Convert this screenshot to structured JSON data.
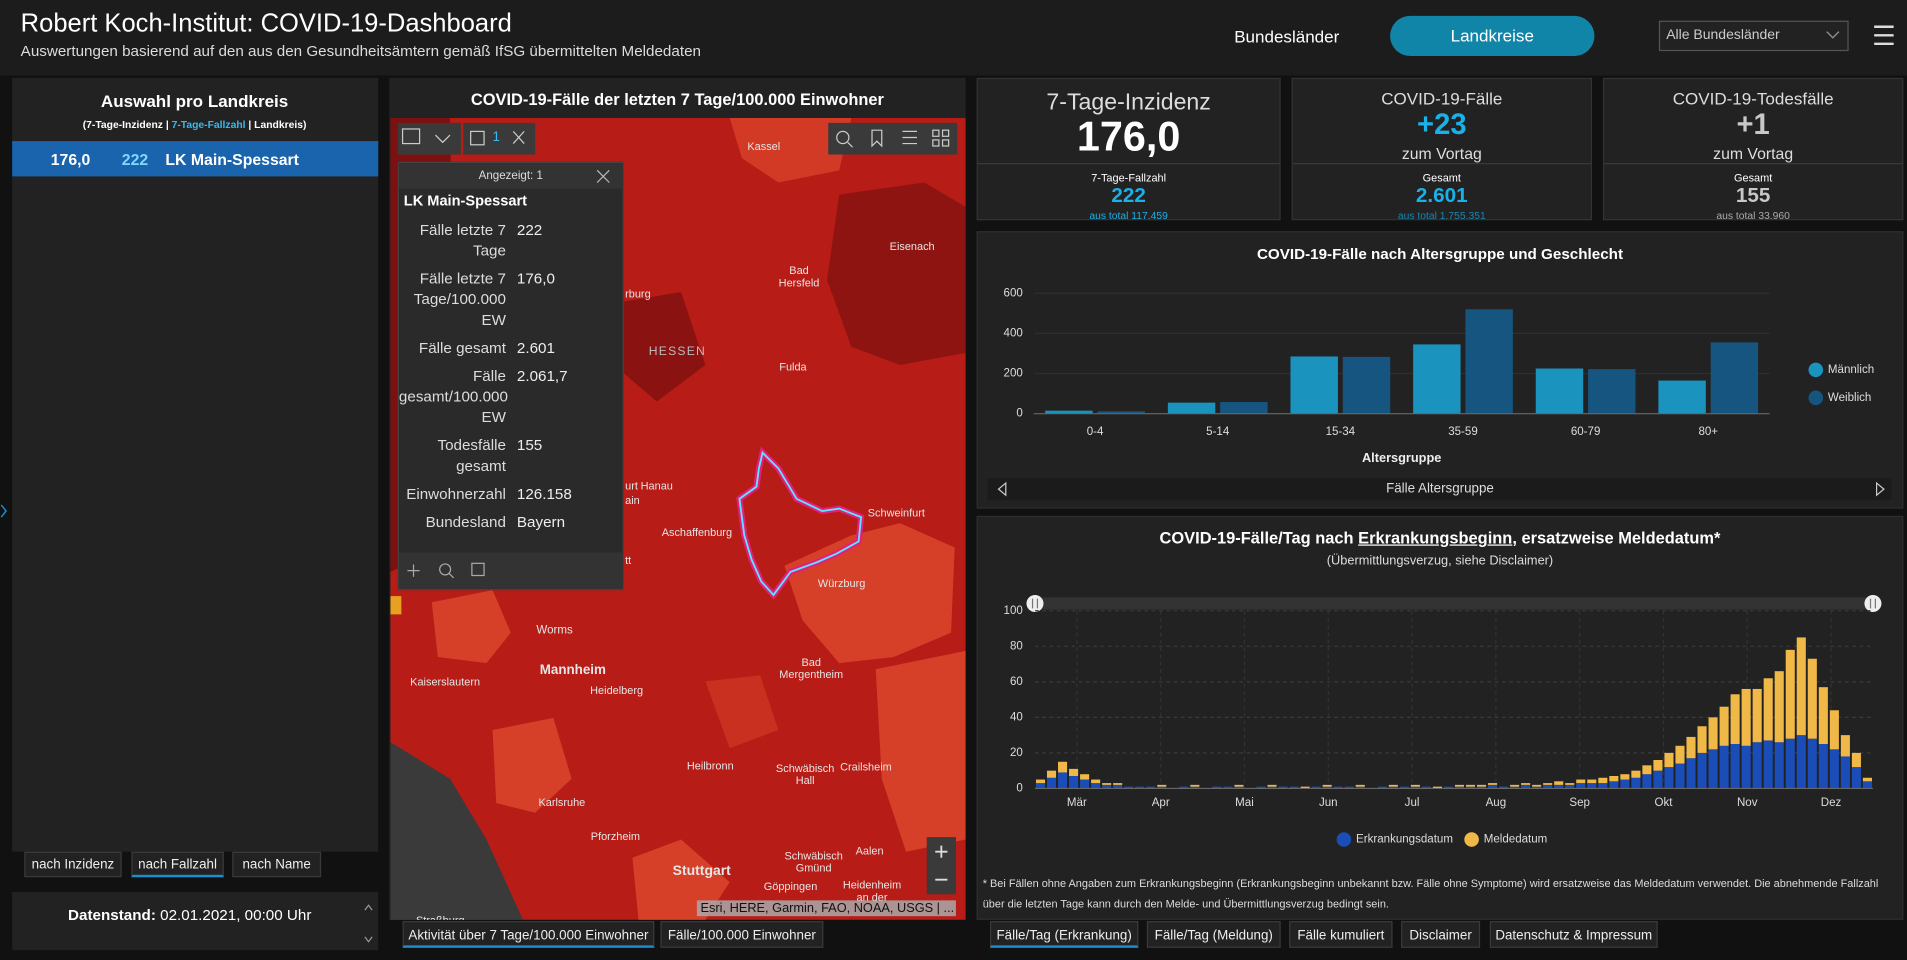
{
  "header": {
    "title": "Robert Koch-Institut: COVID-19-Dashboard",
    "subtitle": "Auswertungen basierend auf den aus den Gesundheitsämtern gemäß IfSG übermittelten Meldedaten",
    "nav": [
      "Bundesländer",
      "Landkreise"
    ],
    "dropdown": "Alle Bundesländer"
  },
  "list_panel": {
    "title": "Auswahl pro Landkreis",
    "subtitle": [
      "(7-Tage-Inzidenz | ",
      "7-Tage-Fallzahl",
      " | Landkreis)"
    ],
    "rows": [
      [
        "176,0",
        "222",
        "LK Main-Spessart"
      ]
    ],
    "sort_buttons": [
      "nach Inzidenz",
      "nach Fallzahl",
      "nach Name"
    ],
    "date_label": "Datenstand:",
    "date": "02.01.2021, 00:00 Uhr"
  },
  "map_panel": {
    "title": "COVID-19-Fälle der letzten 7 Tage/100.000 Einwohner",
    "selection_count": "1",
    "popup": {
      "header": "Angezeigt: 1",
      "title": "LK Main-Spessart",
      "fields": [
        [
          "Fälle letzte 7 Tage",
          "222"
        ],
        [
          "Fälle letzte 7 Tage/100.000 EW",
          "176,0"
        ],
        [
          "Fälle gesamt",
          "2.601"
        ],
        [
          "Fälle gesamt/100.000 EW",
          "2.061,7"
        ],
        [
          "Todesfälle gesamt",
          "155"
        ],
        [
          "Einwohnerzahl",
          "126.158"
        ],
        [
          "Bundesland",
          "Bayern"
        ]
      ]
    },
    "place_labels": [
      [
        "Kassel"
      ],
      [
        "Eisenach"
      ],
      [
        "Bad",
        "Hersfeld"
      ],
      [
        "HESSEN"
      ],
      [
        "Fulda"
      ],
      [
        "rburg"
      ],
      [
        "urt"
      ],
      [
        "Hanau"
      ],
      [
        "ain"
      ],
      [
        "tt"
      ],
      [
        "Aschaffenburg"
      ],
      [
        "Schweinfurt"
      ],
      [
        "Würzburg"
      ],
      [
        "Worms"
      ],
      [
        "Mannheim"
      ],
      [
        "Bad",
        "Mergentheim"
      ],
      [
        "Kaiserslautern"
      ],
      [
        "Heidelberg"
      ],
      [
        "Heilbronn"
      ],
      [
        "Schwäbisch",
        "Hall"
      ],
      [
        "Crailsheim"
      ],
      [
        "Karlsruhe"
      ],
      [
        "Pforzheim"
      ],
      [
        "Aalen"
      ],
      [
        "Stuttgart"
      ],
      [
        "Schwäbisch",
        "Gmünd"
      ],
      [
        "Göppingen"
      ],
      [
        "Heidenheim",
        "an der"
      ],
      [
        "Straßburg"
      ]
    ],
    "attribution": "Esri, HERE, Garmin, FAO, NOAA, USGS | ...",
    "tabs": [
      "Aktivität über 7 Tage/100.000 Einwohner",
      "Fälle/100.000 Einwohner"
    ]
  },
  "kpis": [
    {
      "title": "7-Tage-Inzidenz",
      "value": "176,0",
      "sub_label": "7-Tage-Fallzahl",
      "sub_value": "222",
      "sub_total": "aus total 117.459"
    },
    {
      "title": "COVID-19-Fälle",
      "value": "+23",
      "value_note": "zum Vortag",
      "sub_label": "Gesamt",
      "sub_value": "2.601",
      "sub_total": "aus total 1.755.351"
    },
    {
      "title": "COVID-19-Todesfälle",
      "value": "+1",
      "value_note": "zum Vortag",
      "sub_label": "Gesamt",
      "sub_value": "155",
      "sub_total": "aus total 33.960"
    }
  ],
  "age_chart": {
    "type": "bar",
    "title": "COVID-19-Fälle nach Altersgruppe und Geschlecht",
    "x_label": "Altersgruppe",
    "nav_label": "Fälle Altersgruppe",
    "categories": [
      "0-4",
      "5-14",
      "15-34",
      "35-59",
      "60-79",
      "80+"
    ],
    "series": [
      {
        "name": "Männlich",
        "color": "#1a93bf",
        "values": [
          15,
          55,
          285,
          345,
          225,
          165
        ]
      },
      {
        "name": "Weiblich",
        "color": "#15557f",
        "values": [
          12,
          58,
          283,
          520,
          222,
          355
        ]
      }
    ],
    "ylim": [
      0,
      600
    ],
    "yticks": [
      0,
      200,
      400,
      600
    ],
    "grid": true
  },
  "daily_chart": {
    "type": "stacked_bar",
    "title": [
      "COVID-19-Fälle/Tag nach ",
      "Erkrankungsbeginn",
      ", ersatzweise Meldedatum*"
    ],
    "subtitle": "(Übermittlungsverzug, siehe Disclaimer)",
    "xlim": [
      0,
      76
    ],
    "xticks": [
      {
        "value": 3.8,
        "label": "Mär"
      },
      {
        "value": 11.4,
        "label": "Apr"
      },
      {
        "value": 19,
        "label": "Mai"
      },
      {
        "value": 26.6,
        "label": "Jun"
      },
      {
        "value": 34.2,
        "label": "Jul"
      },
      {
        "value": 41.8,
        "label": "Aug"
      },
      {
        "value": 49.4,
        "label": "Sep"
      },
      {
        "value": 57,
        "label": "Okt"
      },
      {
        "value": 64.6,
        "label": "Nov"
      },
      {
        "value": 72.2,
        "label": "Dez"
      }
    ],
    "ylim": [
      0,
      100
    ],
    "yticks": [
      0,
      20,
      40,
      60,
      80,
      100
    ],
    "grid": true,
    "series": [
      {
        "name": "Erkrankungsdatum",
        "color": "#1a4db8",
        "values": [
          3,
          6,
          9,
          7,
          5,
          3,
          2,
          2,
          1,
          1,
          1,
          1,
          0,
          1,
          1,
          0,
          1,
          1,
          1,
          0,
          1,
          1,
          1,
          1,
          0,
          1,
          1,
          1,
          1,
          1,
          0,
          1,
          1,
          1,
          1,
          1,
          0,
          1,
          1,
          1,
          1,
          2,
          1,
          1,
          2,
          1,
          2,
          2,
          2,
          3,
          3,
          3,
          4,
          5,
          6,
          8,
          10,
          12,
          14,
          17,
          20,
          22,
          24,
          25,
          24,
          26,
          27,
          26,
          28,
          30,
          28,
          25,
          22,
          18,
          12,
          4
        ]
      },
      {
        "name": "Meldedatum",
        "color": "#f0b847",
        "values": [
          2,
          4,
          6,
          4,
          3,
          2,
          1,
          1,
          0,
          0,
          0,
          1,
          0,
          0,
          1,
          0,
          0,
          0,
          1,
          0,
          0,
          1,
          0,
          0,
          1,
          0,
          1,
          0,
          0,
          1,
          0,
          0,
          1,
          0,
          1,
          0,
          1,
          0,
          1,
          1,
          1,
          1,
          0,
          1,
          1,
          1,
          1,
          2,
          1,
          2,
          2,
          3,
          3,
          3,
          4,
          5,
          6,
          8,
          10,
          12,
          15,
          18,
          22,
          28,
          32,
          30,
          35,
          40,
          50,
          55,
          45,
          32,
          22,
          12,
          8,
          2
        ]
      }
    ]
  },
  "footnote": "* Bei Fällen ohne Angaben zum Erkrankungsbeginn (Erkrankungsbeginn unbekannt bzw. Fälle ohne Symptome) wird ersatzweise das Meldedatum verwendet. Die abnehmende Fallzahl über die letzten Tage kann durch den Melde- und Übermittlungsverzug bedingt sein.",
  "bottom_tabs": [
    "Fälle/Tag (Erkrankung)",
    "Fälle/Tag (Meldung)",
    "Fälle kumuliert",
    "Disclaimer",
    "Datenschutz & Impressum"
  ]
}
